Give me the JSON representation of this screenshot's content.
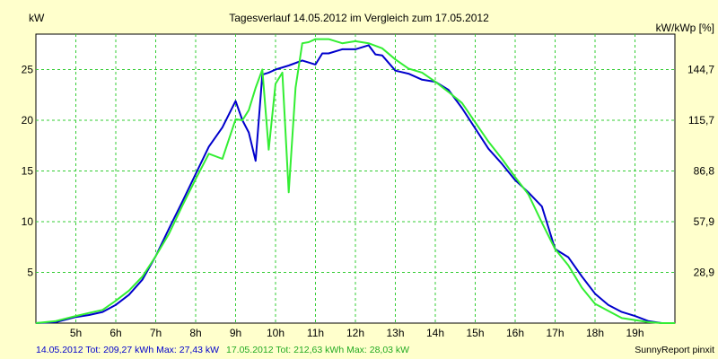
{
  "chart_data": {
    "type": "line",
    "title": "Tagesverlauf 14.05.2012 im Vergleich zum 17.05.2012",
    "ylabel": "kW",
    "y2label": "kW/kWp [%]",
    "ylim": [
      0,
      28.5
    ],
    "xlim": [
      4.0,
      20.0
    ],
    "grid": true,
    "x_ticks": [
      {
        "x": 5,
        "label": "5h"
      },
      {
        "x": 6,
        "label": "6h"
      },
      {
        "x": 7,
        "label": "7h"
      },
      {
        "x": 8,
        "label": "8h"
      },
      {
        "x": 9,
        "label": "9h"
      },
      {
        "x": 10,
        "label": "10h"
      },
      {
        "x": 11,
        "label": "11h"
      },
      {
        "x": 12,
        "label": "12h"
      },
      {
        "x": 13,
        "label": "13h"
      },
      {
        "x": 14,
        "label": "14h"
      },
      {
        "x": 15,
        "label": "15h"
      },
      {
        "x": 16,
        "label": "16h"
      },
      {
        "x": 17,
        "label": "17h"
      },
      {
        "x": 18,
        "label": "18h"
      },
      {
        "x": 19,
        "label": "19h"
      }
    ],
    "y_ticks": [
      {
        "value": 5,
        "label": "5"
      },
      {
        "value": 10,
        "label": "10"
      },
      {
        "value": 15,
        "label": "15"
      },
      {
        "value": 20,
        "label": "20"
      },
      {
        "value": 25,
        "label": "25"
      }
    ],
    "y2_ticks": [
      {
        "value": 5,
        "label": "28,9"
      },
      {
        "value": 10,
        "label": "57,9"
      },
      {
        "value": 15,
        "label": "86,8"
      },
      {
        "value": 20,
        "label": "115,7"
      },
      {
        "value": 25,
        "label": "144,7"
      }
    ],
    "series": [
      {
        "color": "#0000cc",
        "x": [
          4.0,
          4.5,
          5.0,
          5.33,
          5.67,
          6.0,
          6.33,
          6.67,
          7.0,
          7.33,
          7.67,
          8.0,
          8.33,
          8.67,
          9.0,
          9.17,
          9.33,
          9.5,
          9.67,
          9.83,
          10.0,
          10.33,
          10.67,
          11.0,
          11.17,
          11.33,
          11.67,
          11.83,
          12.0,
          12.33,
          12.5,
          12.67,
          13.0,
          13.33,
          13.67,
          14.0,
          14.33,
          14.67,
          15.0,
          15.33,
          15.67,
          16.0,
          16.33,
          16.67,
          17.0,
          17.33,
          17.67,
          18.0,
          18.33,
          18.67,
          19.0,
          19.33,
          19.67,
          20.0
        ],
        "values": [
          0,
          0.1,
          0.6,
          0.8,
          1.1,
          1.8,
          2.8,
          4.3,
          6.6,
          9.3,
          12.0,
          14.7,
          17.4,
          19.3,
          21.9,
          20.0,
          18.8,
          16.0,
          24.5,
          24.7,
          25.0,
          25.4,
          25.9,
          25.5,
          26.6,
          26.6,
          27.0,
          27.0,
          27.0,
          27.4,
          26.5,
          26.4,
          24.9,
          24.6,
          24.0,
          23.8,
          23.0,
          21.2,
          19.2,
          17.2,
          15.7,
          14.1,
          12.9,
          11.5,
          7.3,
          6.5,
          4.6,
          2.9,
          1.8,
          1.1,
          0.7,
          0.2,
          0,
          0
        ]
      },
      {
        "color": "#33ee33",
        "x": [
          4.0,
          4.5,
          5.0,
          5.33,
          5.67,
          6.0,
          6.33,
          6.67,
          7.0,
          7.33,
          7.67,
          8.0,
          8.33,
          8.67,
          9.0,
          9.17,
          9.33,
          9.5,
          9.67,
          9.83,
          10.0,
          10.17,
          10.33,
          10.5,
          10.67,
          10.83,
          11.0,
          11.33,
          11.67,
          12.0,
          12.33,
          12.67,
          13.0,
          13.33,
          13.67,
          14.0,
          14.33,
          14.67,
          15.0,
          15.33,
          15.67,
          16.0,
          16.33,
          16.67,
          17.0,
          17.33,
          17.67,
          18.0,
          18.33,
          18.67,
          19.0,
          19.33,
          19.67,
          20.0
        ],
        "values": [
          0,
          0.2,
          0.7,
          1.0,
          1.3,
          2.2,
          3.2,
          4.6,
          6.6,
          8.8,
          11.6,
          14.2,
          16.7,
          16.2,
          20.1,
          20.0,
          21.0,
          23.2,
          25.0,
          17.1,
          23.6,
          24.7,
          12.9,
          23.2,
          27.6,
          27.7,
          28.0,
          28.0,
          27.6,
          27.8,
          27.6,
          27.1,
          26.0,
          25.1,
          24.7,
          23.8,
          22.8,
          21.7,
          19.8,
          17.9,
          16.2,
          14.4,
          12.7,
          9.9,
          7.3,
          5.7,
          3.5,
          1.9,
          1.2,
          0.5,
          0.3,
          0.1,
          0,
          0
        ]
      }
    ]
  },
  "footer": {
    "series1_label": "14.05.2012 Tot: 209,27 kWh Max: 27,43 kW",
    "series2_label": "17.05.2012 Tot: 212,63 kWh Max: 28,03 kW",
    "credit": "SunnyReport pinxit"
  },
  "colors": {
    "background": "#ffffcc",
    "plot_background": "#ffffff",
    "grid": "#33cc33",
    "axis": "#000000",
    "series1": "#0000cc",
    "series2": "#33ee33"
  }
}
